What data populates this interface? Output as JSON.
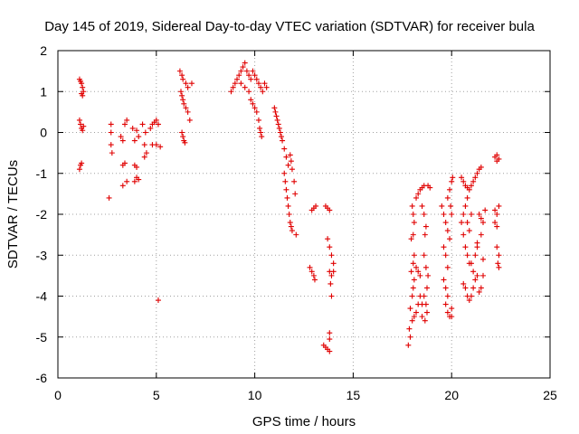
{
  "chart_data": {
    "type": "scatter",
    "title": "Day 145 of 2019, Sidereal Day-to-day VTEC variation (SDTVAR) for receiver bula",
    "xlabel": "GPS time / hours",
    "ylabel": "SDTVAR / TECUs",
    "xlim": [
      0,
      25
    ],
    "ylim": [
      -6,
      2
    ],
    "xticks": [
      0,
      5,
      10,
      15,
      20,
      25
    ],
    "yticks": [
      -6,
      -5,
      -4,
      -3,
      -2,
      -1,
      0,
      1,
      2
    ],
    "xtick_labels": [
      "0",
      "5",
      "10",
      "15",
      "20",
      "25"
    ],
    "ytick_labels": [
      "-6",
      "-5",
      "-4",
      "-3",
      "-2",
      "-1",
      "0",
      "1",
      "2"
    ],
    "grid": true,
    "marker": "+",
    "colors": {
      "series": "#e00000",
      "grid": "#a0a0a0",
      "axes": "#000000"
    },
    "series": [
      {
        "name": "SDTVAR",
        "points": [
          [
            1.1,
            1.3
          ],
          [
            1.15,
            1.25
          ],
          [
            1.2,
            1.2
          ],
          [
            1.25,
            1.1
          ],
          [
            1.3,
            1.0
          ],
          [
            1.2,
            0.95
          ],
          [
            1.25,
            0.9
          ],
          [
            1.1,
            0.3
          ],
          [
            1.15,
            0.2
          ],
          [
            1.2,
            0.1
          ],
          [
            1.25,
            0.05
          ],
          [
            1.3,
            0.15
          ],
          [
            1.2,
            -0.75
          ],
          [
            1.15,
            -0.8
          ],
          [
            1.1,
            -0.9
          ],
          [
            2.6,
            -1.6
          ],
          [
            2.7,
            -0.3
          ],
          [
            2.7,
            0.0
          ],
          [
            2.7,
            0.2
          ],
          [
            2.75,
            -0.5
          ],
          [
            3.2,
            -0.1
          ],
          [
            3.3,
            -0.2
          ],
          [
            3.4,
            0.2
          ],
          [
            3.5,
            0.3
          ],
          [
            3.3,
            -0.8
          ],
          [
            3.4,
            -0.75
          ],
          [
            3.5,
            -1.2
          ],
          [
            3.3,
            -1.3
          ],
          [
            3.8,
            0.1
          ],
          [
            3.9,
            -0.2
          ],
          [
            4.0,
            0.05
          ],
          [
            4.1,
            -0.1
          ],
          [
            3.9,
            -0.8
          ],
          [
            4.0,
            -0.85
          ],
          [
            4.0,
            -1.1
          ],
          [
            3.9,
            -1.2
          ],
          [
            4.1,
            -1.15
          ],
          [
            4.3,
            0.2
          ],
          [
            4.4,
            -0.3
          ],
          [
            4.5,
            -0.5
          ],
          [
            4.4,
            -0.6
          ],
          [
            4.45,
            0.0
          ],
          [
            4.7,
            0.1
          ],
          [
            4.8,
            0.2
          ],
          [
            4.9,
            0.25
          ],
          [
            5.0,
            0.3
          ],
          [
            5.1,
            0.2
          ],
          [
            4.8,
            -0.3
          ],
          [
            5.0,
            -0.3
          ],
          [
            5.2,
            -0.35
          ],
          [
            5.1,
            -4.1
          ],
          [
            6.2,
            1.5
          ],
          [
            6.3,
            1.4
          ],
          [
            6.35,
            1.3
          ],
          [
            6.5,
            1.2
          ],
          [
            6.6,
            1.1
          ],
          [
            6.8,
            1.2
          ],
          [
            6.25,
            1.0
          ],
          [
            6.3,
            0.9
          ],
          [
            6.35,
            0.8
          ],
          [
            6.4,
            0.7
          ],
          [
            6.5,
            0.6
          ],
          [
            6.6,
            0.5
          ],
          [
            6.7,
            0.3
          ],
          [
            6.3,
            0.0
          ],
          [
            6.35,
            -0.1
          ],
          [
            6.4,
            -0.2
          ],
          [
            6.45,
            -0.25
          ],
          [
            8.8,
            1.0
          ],
          [
            8.9,
            1.1
          ],
          [
            9.0,
            1.2
          ],
          [
            9.1,
            1.3
          ],
          [
            9.2,
            1.4
          ],
          [
            9.3,
            1.5
          ],
          [
            9.4,
            1.6
          ],
          [
            9.5,
            1.7
          ],
          [
            9.6,
            1.5
          ],
          [
            9.7,
            1.4
          ],
          [
            9.8,
            1.3
          ],
          [
            9.9,
            1.5
          ],
          [
            10.0,
            1.4
          ],
          [
            10.1,
            1.3
          ],
          [
            10.2,
            1.2
          ],
          [
            10.3,
            1.1
          ],
          [
            10.4,
            1.0
          ],
          [
            10.5,
            1.2
          ],
          [
            10.6,
            1.1
          ],
          [
            9.3,
            1.2
          ],
          [
            9.5,
            1.1
          ],
          [
            9.7,
            1.0
          ],
          [
            9.8,
            0.8
          ],
          [
            9.9,
            0.7
          ],
          [
            10.0,
            0.6
          ],
          [
            10.1,
            0.5
          ],
          [
            10.2,
            0.3
          ],
          [
            10.25,
            0.1
          ],
          [
            10.3,
            0.0
          ],
          [
            10.35,
            -0.1
          ],
          [
            11.0,
            0.6
          ],
          [
            11.05,
            0.5
          ],
          [
            11.1,
            0.4
          ],
          [
            11.15,
            0.3
          ],
          [
            11.2,
            0.2
          ],
          [
            11.25,
            0.1
          ],
          [
            11.3,
            0.0
          ],
          [
            11.35,
            -0.1
          ],
          [
            11.4,
            -0.2
          ],
          [
            11.5,
            -0.4
          ],
          [
            11.6,
            -0.6
          ],
          [
            11.7,
            -0.8
          ],
          [
            11.8,
            -0.55
          ],
          [
            11.85,
            -0.7
          ],
          [
            11.9,
            -0.9
          ],
          [
            11.5,
            -1.0
          ],
          [
            11.55,
            -1.2
          ],
          [
            11.6,
            -1.4
          ],
          [
            11.65,
            -1.6
          ],
          [
            11.7,
            -1.8
          ],
          [
            11.75,
            -2.0
          ],
          [
            11.8,
            -2.2
          ],
          [
            11.85,
            -2.3
          ],
          [
            11.9,
            -2.4
          ],
          [
            12.0,
            -1.2
          ],
          [
            12.05,
            -1.5
          ],
          [
            12.1,
            -2.5
          ],
          [
            12.9,
            -1.9
          ],
          [
            13.0,
            -1.85
          ],
          [
            13.1,
            -1.8
          ],
          [
            12.8,
            -3.3
          ],
          [
            12.9,
            -3.4
          ],
          [
            13.0,
            -3.5
          ],
          [
            13.05,
            -3.6
          ],
          [
            13.6,
            -1.8
          ],
          [
            13.7,
            -1.85
          ],
          [
            13.8,
            -1.9
          ],
          [
            13.7,
            -2.6
          ],
          [
            13.8,
            -2.8
          ],
          [
            13.9,
            -3.0
          ],
          [
            14.0,
            -3.2
          ],
          [
            13.8,
            -3.4
          ],
          [
            13.9,
            -3.5
          ],
          [
            14.0,
            -3.4
          ],
          [
            13.9,
            -4.0
          ],
          [
            13.85,
            -3.7
          ],
          [
            13.5,
            -5.2
          ],
          [
            13.6,
            -5.25
          ],
          [
            13.7,
            -5.3
          ],
          [
            13.8,
            -5.35
          ],
          [
            13.8,
            -4.9
          ],
          [
            13.8,
            -5.05
          ],
          [
            17.8,
            -5.2
          ],
          [
            17.9,
            -5.0
          ],
          [
            17.85,
            -4.8
          ],
          [
            18.0,
            -4.6
          ],
          [
            18.1,
            -4.5
          ],
          [
            18.2,
            -4.4
          ],
          [
            18.3,
            -4.2
          ],
          [
            18.4,
            -4.0
          ],
          [
            18.5,
            -4.2
          ],
          [
            17.9,
            -4.3
          ],
          [
            18.0,
            -4.0
          ],
          [
            18.05,
            -3.8
          ],
          [
            18.1,
            -3.6
          ],
          [
            17.95,
            -3.4
          ],
          [
            18.05,
            -3.2
          ],
          [
            18.2,
            -3.3
          ],
          [
            18.3,
            -3.4
          ],
          [
            18.4,
            -3.5
          ],
          [
            18.0,
            -1.8
          ],
          [
            18.05,
            -2.0
          ],
          [
            18.1,
            -2.2
          ],
          [
            17.95,
            -2.6
          ],
          [
            18.05,
            -2.5
          ],
          [
            18.1,
            -3.0
          ],
          [
            18.2,
            -1.6
          ],
          [
            18.3,
            -1.5
          ],
          [
            18.4,
            -1.4
          ],
          [
            18.5,
            -1.35
          ],
          [
            18.6,
            -1.3
          ],
          [
            18.8,
            -1.3
          ],
          [
            18.9,
            -1.35
          ],
          [
            18.5,
            -1.8
          ],
          [
            18.6,
            -2.0
          ],
          [
            18.7,
            -2.3
          ],
          [
            18.65,
            -2.5
          ],
          [
            18.6,
            -3.0
          ],
          [
            18.7,
            -3.3
          ],
          [
            18.8,
            -3.5
          ],
          [
            18.75,
            -3.8
          ],
          [
            18.6,
            -4.0
          ],
          [
            18.7,
            -4.2
          ],
          [
            18.75,
            -4.4
          ],
          [
            18.65,
            -4.6
          ],
          [
            18.5,
            -4.5
          ],
          [
            19.5,
            -1.8
          ],
          [
            19.6,
            -2.0
          ],
          [
            19.7,
            -2.2
          ],
          [
            19.8,
            -2.4
          ],
          [
            19.9,
            -2.6
          ],
          [
            19.6,
            -2.8
          ],
          [
            19.7,
            -3.0
          ],
          [
            19.8,
            -3.3
          ],
          [
            19.6,
            -3.6
          ],
          [
            19.7,
            -3.8
          ],
          [
            19.8,
            -4.0
          ],
          [
            19.7,
            -4.2
          ],
          [
            19.8,
            -4.4
          ],
          [
            19.9,
            -4.5
          ],
          [
            20.0,
            -4.5
          ],
          [
            20.0,
            -4.3
          ],
          [
            19.8,
            -1.6
          ],
          [
            19.9,
            -1.4
          ],
          [
            20.0,
            -1.2
          ],
          [
            20.05,
            -1.1
          ],
          [
            19.95,
            -1.8
          ],
          [
            20.0,
            -2.0
          ],
          [
            20.5,
            -1.1
          ],
          [
            20.6,
            -1.2
          ],
          [
            20.7,
            -1.3
          ],
          [
            20.8,
            -1.35
          ],
          [
            20.9,
            -1.4
          ],
          [
            21.0,
            -1.3
          ],
          [
            21.1,
            -1.2
          ],
          [
            21.2,
            -1.1
          ],
          [
            21.3,
            -1.0
          ],
          [
            21.4,
            -0.9
          ],
          [
            21.5,
            -0.85
          ],
          [
            20.5,
            -2.2
          ],
          [
            20.6,
            -2.5
          ],
          [
            20.7,
            -2.8
          ],
          [
            20.8,
            -3.0
          ],
          [
            20.9,
            -3.2
          ],
          [
            20.8,
            -2.2
          ],
          [
            20.9,
            -2.4
          ],
          [
            21.0,
            -2.0
          ],
          [
            20.7,
            -1.8
          ],
          [
            20.8,
            -1.6
          ],
          [
            20.6,
            -2.0
          ],
          [
            20.6,
            -3.7
          ],
          [
            20.7,
            -3.8
          ],
          [
            20.8,
            -4.0
          ],
          [
            20.9,
            -4.1
          ],
          [
            21.0,
            -4.0
          ],
          [
            21.1,
            -3.8
          ],
          [
            21.2,
            -3.6
          ],
          [
            21.3,
            -3.5
          ],
          [
            21.0,
            -3.2
          ],
          [
            21.1,
            -3.4
          ],
          [
            21.2,
            -3.0
          ],
          [
            21.3,
            -2.8
          ],
          [
            21.4,
            -3.9
          ],
          [
            21.5,
            -3.8
          ],
          [
            21.6,
            -3.5
          ],
          [
            21.4,
            -2.0
          ],
          [
            21.5,
            -2.1
          ],
          [
            21.6,
            -2.2
          ],
          [
            21.7,
            -1.9
          ],
          [
            21.5,
            -2.5
          ],
          [
            21.3,
            -2.7
          ],
          [
            21.6,
            -3.1
          ],
          [
            22.2,
            -0.6
          ],
          [
            22.3,
            -0.55
          ],
          [
            22.4,
            -0.65
          ],
          [
            22.3,
            -0.7
          ],
          [
            22.2,
            -1.9
          ],
          [
            22.3,
            -2.0
          ],
          [
            22.2,
            -2.2
          ],
          [
            22.3,
            -2.3
          ],
          [
            22.4,
            -1.8
          ],
          [
            22.3,
            -2.8
          ],
          [
            22.4,
            -3.0
          ],
          [
            22.35,
            -3.2
          ],
          [
            22.4,
            -3.3
          ]
        ]
      }
    ]
  }
}
